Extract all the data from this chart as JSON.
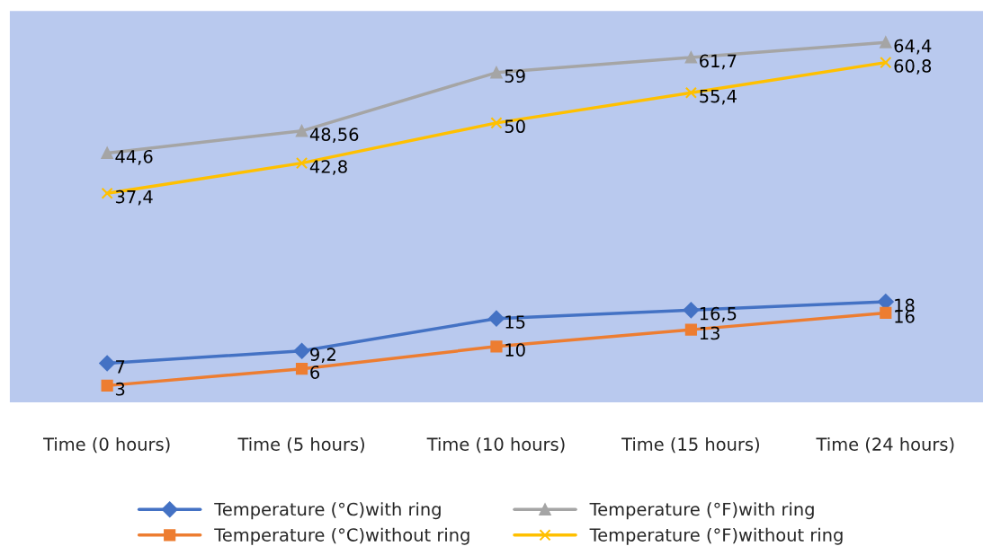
{
  "chart_data": {
    "type": "line",
    "categories": [
      "Time (0 hours)",
      "Time (5 hours)",
      "Time (10 hours)",
      "Time (15 hours)",
      "Time (24 hours)"
    ],
    "series": [
      {
        "name": "Temperature (°C)with ring",
        "color": "#4472c4",
        "marker": "diamond",
        "values": [
          7,
          9.2,
          15,
          16.5,
          18
        ],
        "value_labels": [
          "7",
          "9,2",
          "15",
          "16,5",
          "18"
        ]
      },
      {
        "name": "Temperature (°C)without ring",
        "color": "#ed7d31",
        "marker": "square",
        "values": [
          3,
          6,
          10,
          13,
          16
        ],
        "value_labels": [
          "3",
          "6",
          "10",
          "13",
          "16"
        ]
      },
      {
        "name": "Temperature (°F)with ring",
        "color": "#a5a5a5",
        "marker": "triangle",
        "values": [
          44.6,
          48.56,
          59,
          61.7,
          64.4
        ],
        "value_labels": [
          "44,6",
          "48,56",
          "59",
          "61,7",
          "64,4"
        ]
      },
      {
        "name": "Temperature (°F)without ring",
        "color": "#ffc000",
        "marker": "cross",
        "values": [
          37.4,
          42.8,
          50,
          55.4,
          60.8
        ],
        "value_labels": [
          "37,4",
          "42,8",
          "50",
          "55,4",
          "60,8"
        ]
      }
    ],
    "ylim": [
      0,
      70
    ],
    "tick_labels": "x",
    "grid": false,
    "legend": "bottom",
    "line_style": "solid"
  }
}
